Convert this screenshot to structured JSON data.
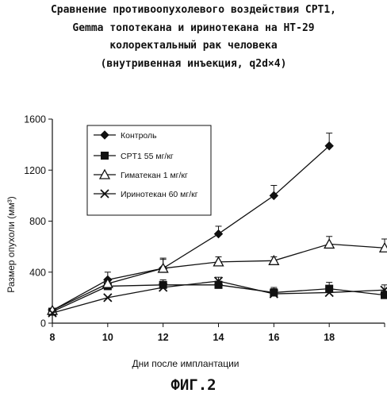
{
  "heading": {
    "line1": "Сравнение противоопухолевого воздействия CPT1,",
    "line2": "Gemma топотекана и иринотекана на HT-29",
    "line3": "колоректальный рак человека",
    "line4": "(внутривенная инъекция, q2d×4)"
  },
  "figure_label": "ФИГ.2",
  "chart_data": {
    "type": "line",
    "xlabel": "Дни после имплантации",
    "ylabel": "Размер опухоли (мм³)",
    "xlim": [
      8,
      20
    ],
    "ylim": [
      0,
      1600
    ],
    "x_ticks": [
      8,
      10,
      12,
      14,
      16,
      18
    ],
    "y_ticks": [
      0,
      400,
      800,
      1200,
      1600
    ],
    "grid": false,
    "legend_position": "top-left",
    "series": [
      {
        "name": "Контроль",
        "marker": "diamond",
        "x": [
          8,
          10,
          12,
          14,
          16,
          18
        ],
        "y": [
          100,
          340,
          430,
          700,
          1000,
          1390
        ],
        "err": [
          0,
          60,
          80,
          60,
          80,
          100
        ]
      },
      {
        "name": "CPT1 55 мг/кг",
        "marker": "square",
        "x": [
          8,
          10,
          12,
          14,
          16,
          18,
          20
        ],
        "y": [
          90,
          290,
          300,
          300,
          240,
          270,
          220
        ],
        "err": [
          0,
          40,
          40,
          30,
          40,
          50,
          30
        ]
      },
      {
        "name": "Гиматекан 1 мг/кг",
        "marker": "triangle-open",
        "x": [
          8,
          10,
          12,
          14,
          16,
          18,
          20
        ],
        "y": [
          100,
          310,
          430,
          480,
          490,
          620,
          590
        ],
        "err": [
          0,
          40,
          70,
          40,
          30,
          60,
          70
        ]
      },
      {
        "name": "Иринотекан 60 мг/кг",
        "marker": "x",
        "x": [
          8,
          10,
          12,
          14,
          16,
          18,
          20
        ],
        "y": [
          80,
          200,
          280,
          330,
          230,
          240,
          260
        ],
        "err": [
          0,
          0,
          30,
          30,
          40,
          40,
          40
        ]
      }
    ]
  }
}
